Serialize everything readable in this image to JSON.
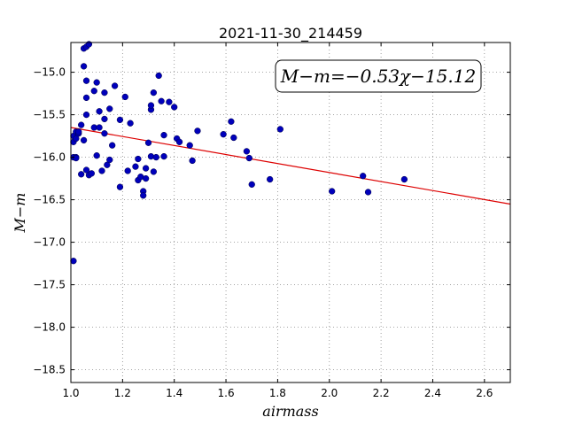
{
  "chart_data": {
    "type": "scatter",
    "title": "2021-11-30_214459",
    "xlabel": "airmass",
    "ylabel": "M−m",
    "xlim": [
      1.0,
      2.7
    ],
    "ylim": [
      -18.65,
      -14.65
    ],
    "y_inverted": true,
    "x_ticks": [
      1.0,
      1.2,
      1.4,
      1.6,
      1.8,
      2.0,
      2.2,
      2.4,
      2.6
    ],
    "x_tick_labels": [
      "1.0",
      "1.2",
      "1.4",
      "1.6",
      "1.8",
      "2.0",
      "2.2",
      "2.4",
      "2.6"
    ],
    "y_ticks": [
      -15.0,
      -15.5,
      -16.0,
      -16.5,
      -17.0,
      -17.5,
      -18.0,
      -18.5
    ],
    "y_tick_labels": [
      "−15.0",
      "−15.5",
      "−16.0",
      "−16.5",
      "−17.0",
      "−17.5",
      "−18.0",
      "−18.5"
    ],
    "grid": true,
    "annotation": "M−m=−0.53χ−15.12",
    "fit": {
      "slope": -0.53,
      "intercept": -15.12,
      "color": "#dd0000"
    },
    "point_color": "#0000bb",
    "points": [
      [
        1.01,
        -15.82
      ],
      [
        1.01,
        -15.75
      ],
      [
        1.01,
        -16.0
      ],
      [
        1.01,
        -17.22
      ],
      [
        1.02,
        -15.7
      ],
      [
        1.02,
        -15.78
      ],
      [
        1.02,
        -16.0
      ],
      [
        1.02,
        -16.01
      ],
      [
        1.03,
        -15.72
      ],
      [
        1.03,
        -15.7
      ],
      [
        1.04,
        -16.2
      ],
      [
        1.04,
        -15.62
      ],
      [
        1.05,
        -14.93
      ],
      [
        1.05,
        -15.8
      ],
      [
        1.05,
        -14.72
      ],
      [
        1.06,
        -14.7
      ],
      [
        1.06,
        -15.1
      ],
      [
        1.06,
        -15.5
      ],
      [
        1.06,
        -15.3
      ],
      [
        1.06,
        -16.15
      ],
      [
        1.07,
        -14.67
      ],
      [
        1.07,
        -16.21
      ],
      [
        1.08,
        -16.19
      ],
      [
        1.09,
        -15.22
      ],
      [
        1.09,
        -15.65
      ],
      [
        1.1,
        -15.12
      ],
      [
        1.1,
        -15.98
      ],
      [
        1.11,
        -15.46
      ],
      [
        1.11,
        -15.65
      ],
      [
        1.12,
        -16.16
      ],
      [
        1.13,
        -15.72
      ],
      [
        1.13,
        -15.55
      ],
      [
        1.13,
        -15.24
      ],
      [
        1.14,
        -16.09
      ],
      [
        1.15,
        -15.43
      ],
      [
        1.15,
        -16.03
      ],
      [
        1.16,
        -15.86
      ],
      [
        1.17,
        -15.16
      ],
      [
        1.19,
        -15.56
      ],
      [
        1.19,
        -16.35
      ],
      [
        1.21,
        -15.29
      ],
      [
        1.22,
        -16.16
      ],
      [
        1.23,
        -15.6
      ],
      [
        1.25,
        -16.11
      ],
      [
        1.26,
        -16.02
      ],
      [
        1.26,
        -16.27
      ],
      [
        1.27,
        -16.23
      ],
      [
        1.28,
        -16.4
      ],
      [
        1.28,
        -16.45
      ],
      [
        1.29,
        -16.25
      ],
      [
        1.29,
        -16.13
      ],
      [
        1.3,
        -15.83
      ],
      [
        1.31,
        -15.44
      ],
      [
        1.31,
        -15.99
      ],
      [
        1.31,
        -15.39
      ],
      [
        1.32,
        -16.17
      ],
      [
        1.32,
        -15.24
      ],
      [
        1.33,
        -16.0
      ],
      [
        1.34,
        -15.04
      ],
      [
        1.35,
        -15.34
      ],
      [
        1.36,
        -15.74
      ],
      [
        1.36,
        -15.99
      ],
      [
        1.38,
        -15.35
      ],
      [
        1.4,
        -15.41
      ],
      [
        1.41,
        -15.78
      ],
      [
        1.42,
        -15.82
      ],
      [
        1.46,
        -15.86
      ],
      [
        1.47,
        -16.04
      ],
      [
        1.49,
        -15.69
      ],
      [
        1.59,
        -15.73
      ],
      [
        1.62,
        -15.58
      ],
      [
        1.63,
        -15.77
      ],
      [
        1.68,
        -15.93
      ],
      [
        1.69,
        -16.01
      ],
      [
        1.7,
        -16.32
      ],
      [
        1.77,
        -16.26
      ],
      [
        1.81,
        -15.67
      ],
      [
        2.01,
        -16.4
      ],
      [
        2.13,
        -16.22
      ],
      [
        2.15,
        -16.41
      ],
      [
        2.29,
        -16.26
      ]
    ]
  }
}
